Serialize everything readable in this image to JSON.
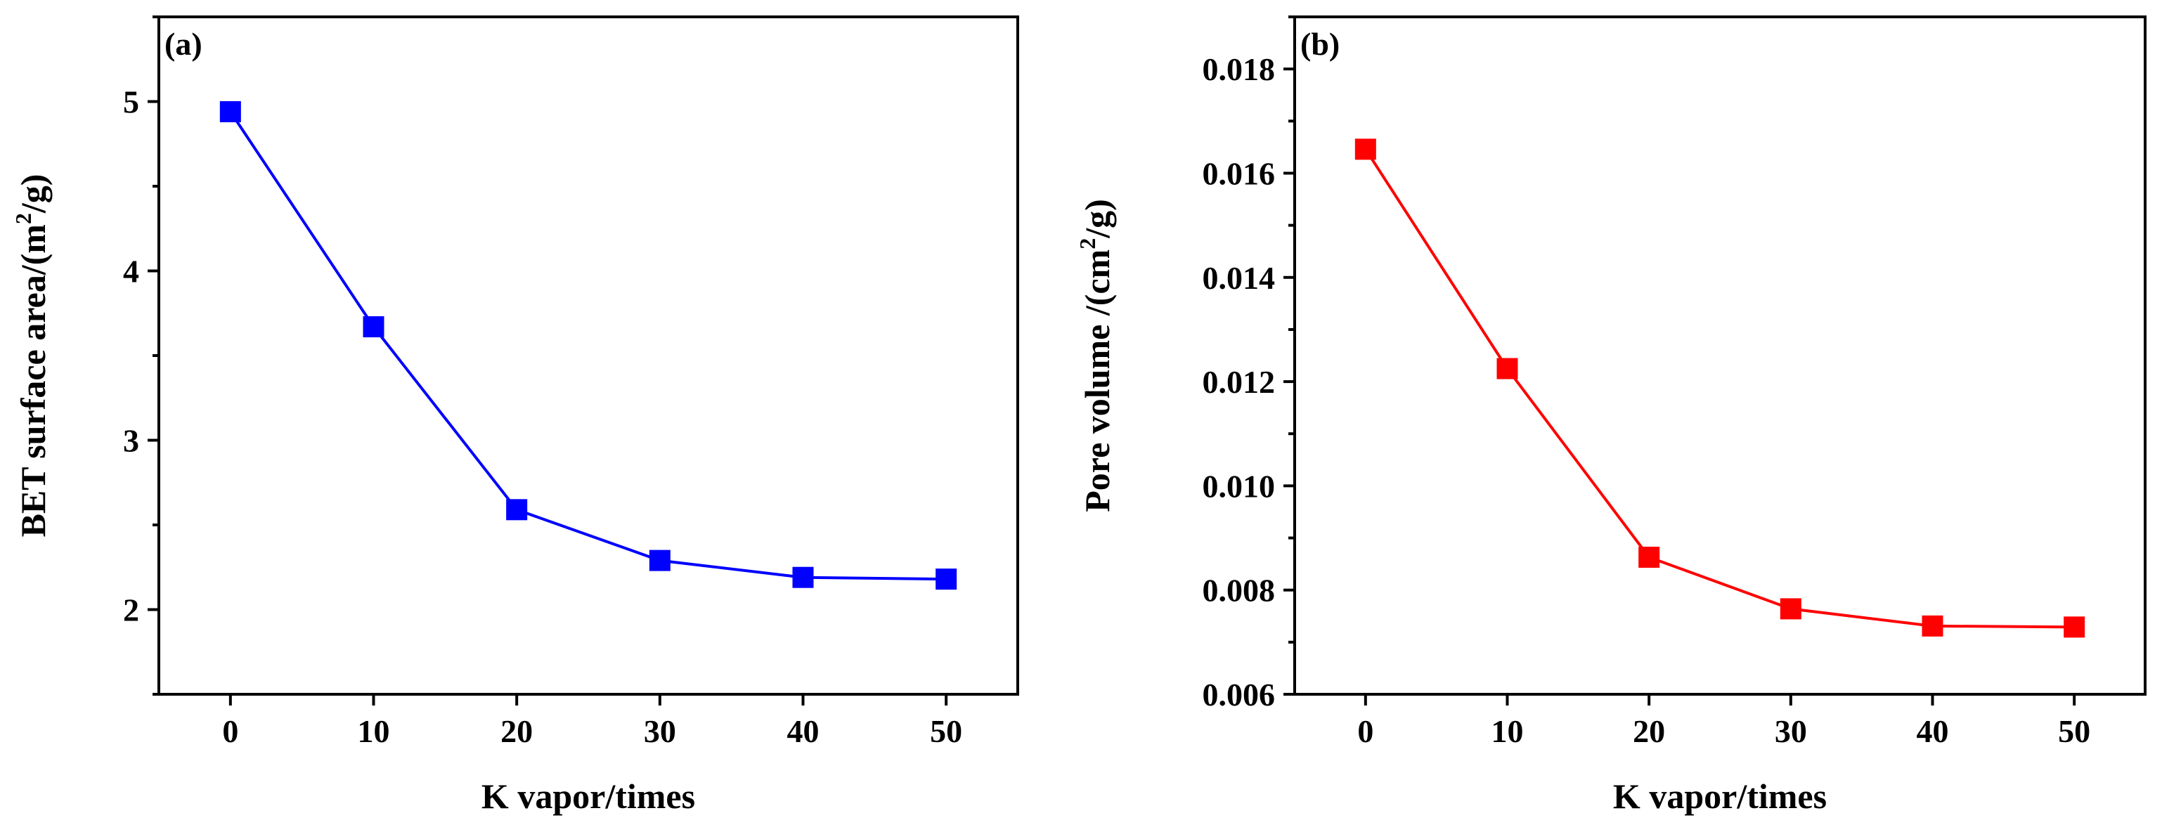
{
  "chart_data": [
    {
      "type": "line",
      "panel_label": "(a)",
      "title": "",
      "xlabel": "K vapor/times",
      "ylabel": {
        "prefix": "BET surface area/(m",
        "sup": "2",
        "suffix": "/g)"
      },
      "x": [
        0,
        10,
        20,
        30,
        40,
        50
      ],
      "series": [
        {
          "name": "BET surface area",
          "color": "#0000ff",
          "marker": "square",
          "values": [
            4.94,
            3.67,
            2.59,
            2.29,
            2.19,
            2.18
          ]
        }
      ],
      "xlim": [
        -5,
        55
      ],
      "ylim": [
        1.5,
        5.5
      ],
      "xticks": [
        0,
        10,
        20,
        30,
        40,
        50
      ],
      "xtick_labels": [
        "0",
        "10",
        "20",
        "30",
        "40",
        "50"
      ],
      "yticks": [
        2,
        3,
        4,
        5
      ],
      "ytick_labels": [
        "2",
        "3",
        "4",
        "5"
      ],
      "yminor": [
        1.5,
        2.5,
        3.5,
        4.5,
        5.5
      ],
      "grid": false
    },
    {
      "type": "line",
      "panel_label": "(b)",
      "title": "",
      "xlabel": "K vapor/times",
      "ylabel": {
        "prefix": "Pore volume /(cm",
        "sup": "2",
        "suffix": "/g)"
      },
      "x": [
        0,
        10,
        20,
        30,
        40,
        50
      ],
      "series": [
        {
          "name": "Pore volume",
          "color": "#ff0000",
          "marker": "square",
          "values": [
            0.01646,
            0.01225,
            0.00863,
            0.00764,
            0.00731,
            0.00729
          ]
        }
      ],
      "xlim": [
        -5,
        55
      ],
      "ylim": [
        0.006,
        0.019
      ],
      "xticks": [
        0,
        10,
        20,
        30,
        40,
        50
      ],
      "xtick_labels": [
        "0",
        "10",
        "20",
        "30",
        "40",
        "50"
      ],
      "yticks": [
        0.006,
        0.008,
        0.01,
        0.012,
        0.014,
        0.016,
        0.018
      ],
      "ytick_labels": [
        "0.006",
        "0.008",
        "0.010",
        "0.012",
        "0.014",
        "0.016",
        "0.018"
      ],
      "yminor": [
        0.007,
        0.009,
        0.011,
        0.013,
        0.015,
        0.017,
        0.019
      ],
      "grid": false
    }
  ]
}
